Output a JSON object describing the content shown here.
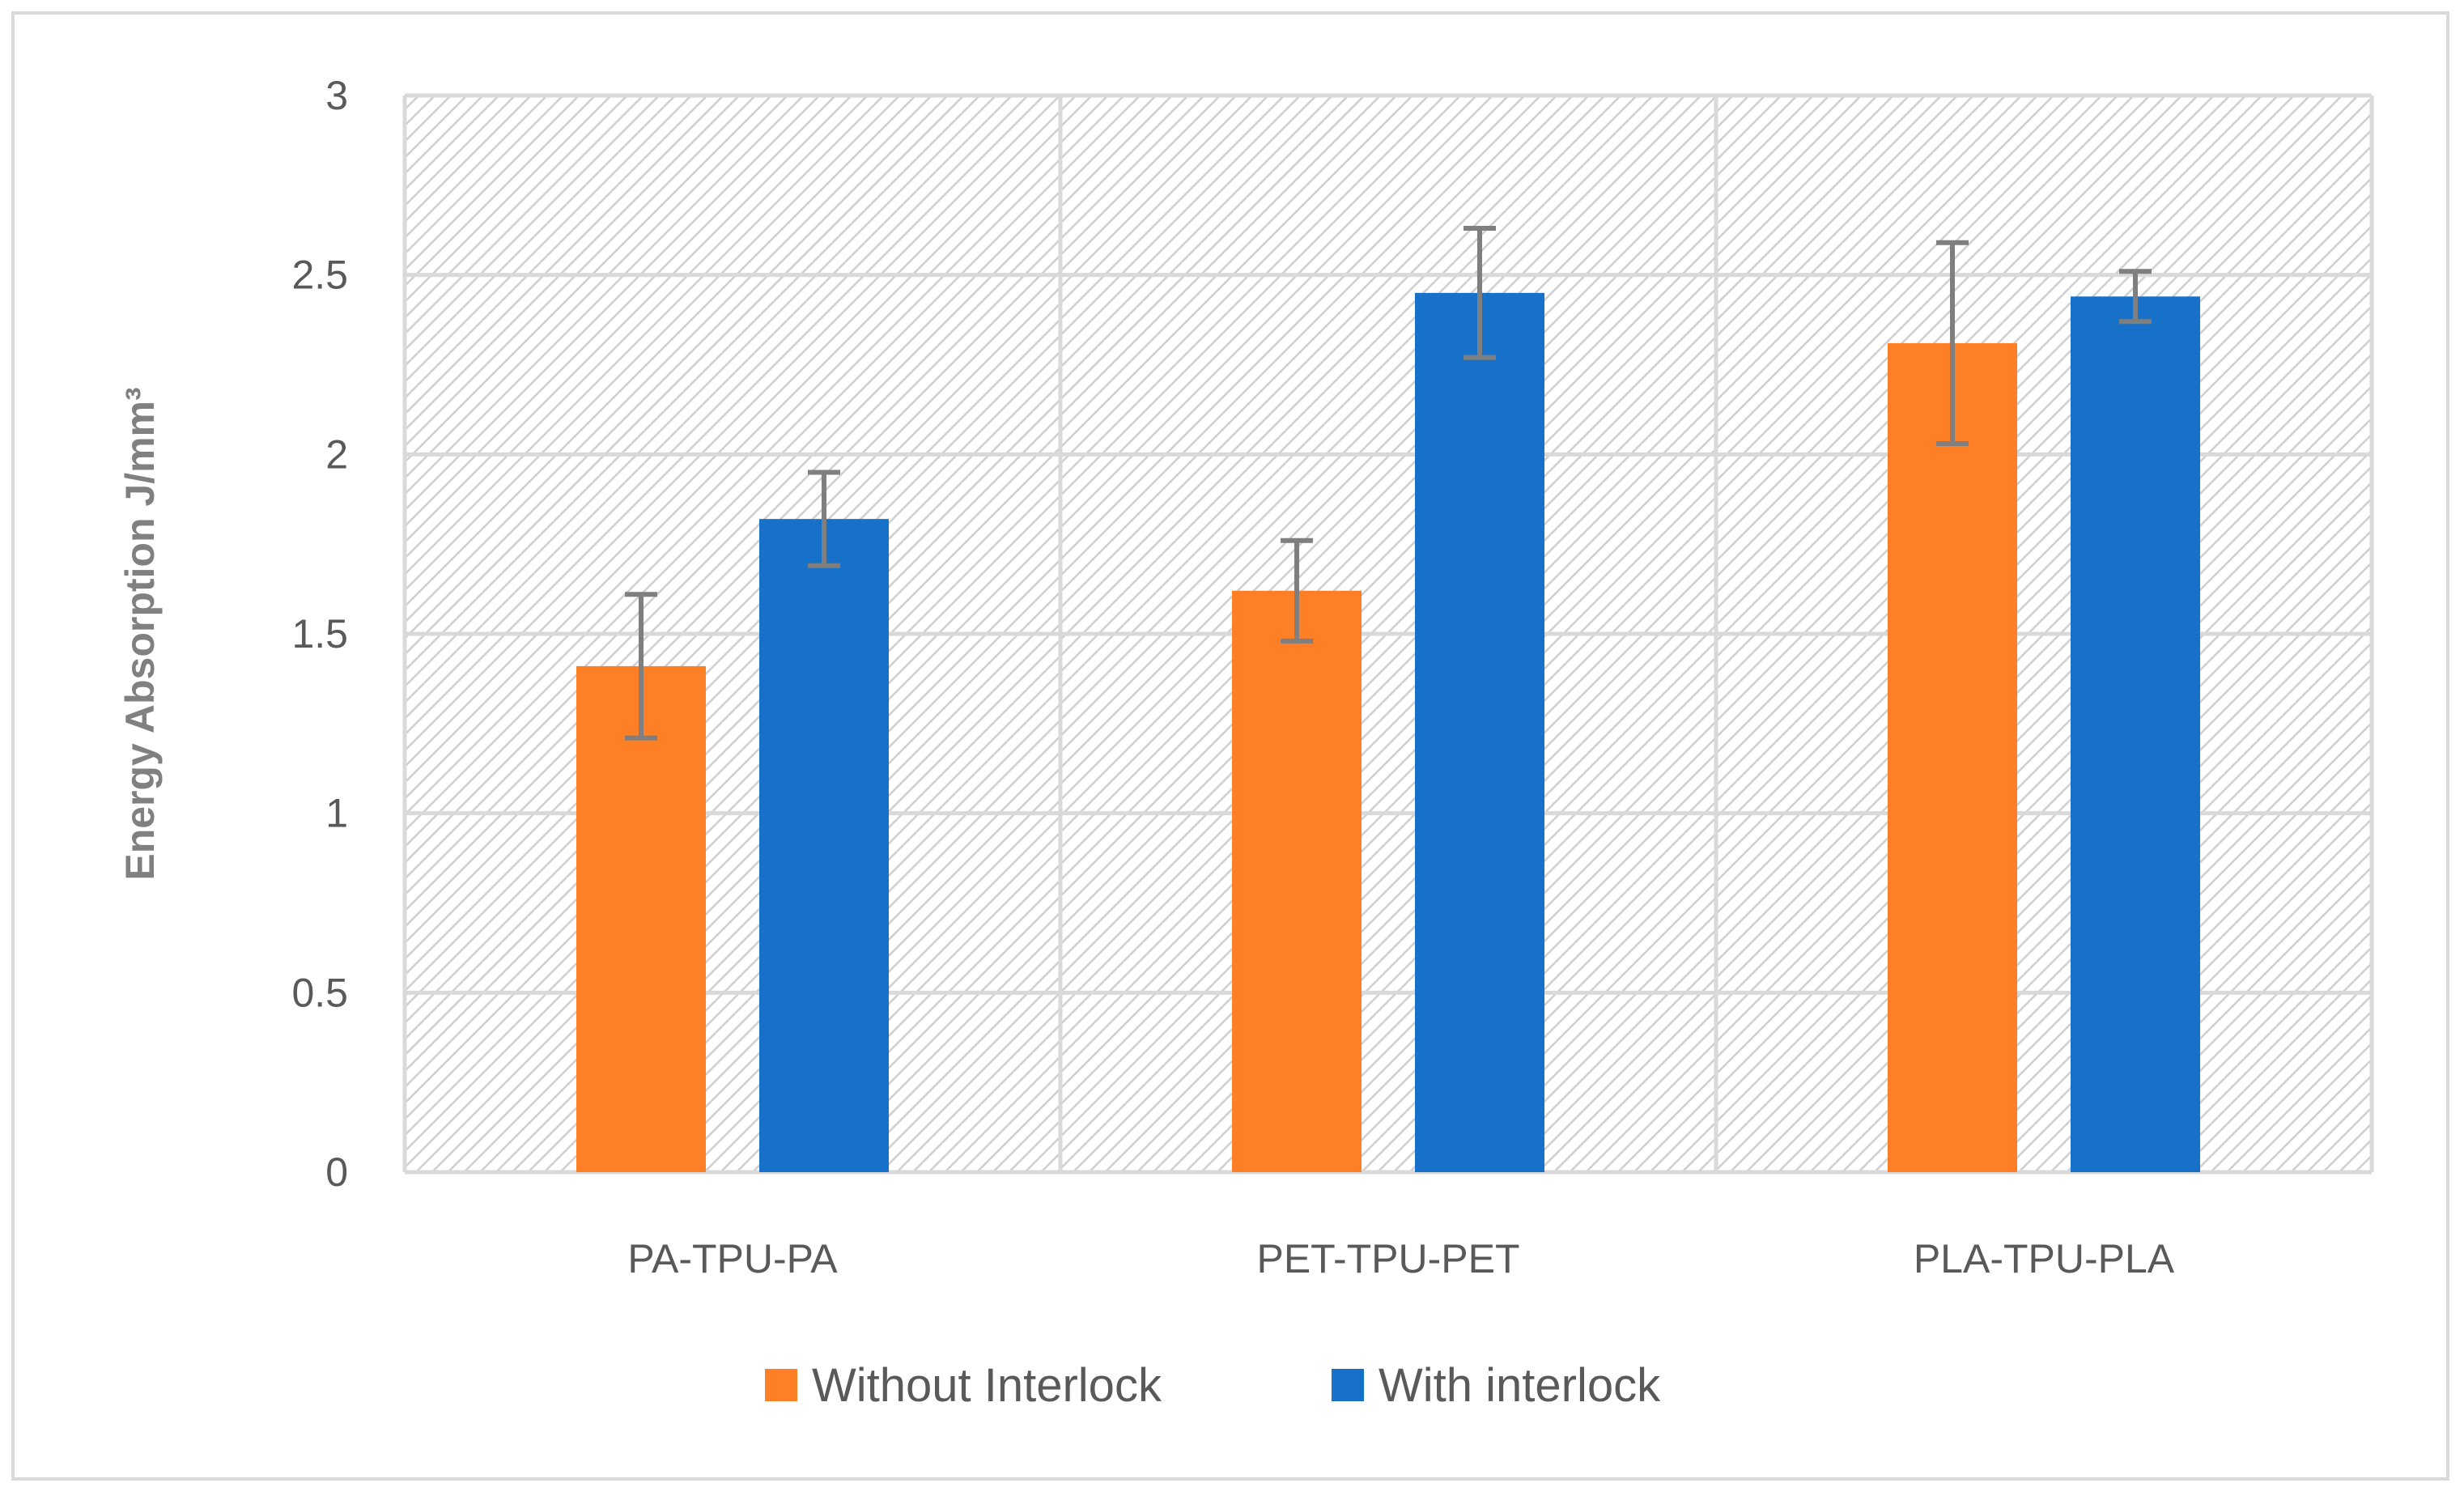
{
  "chart_data": {
    "type": "bar",
    "title": "",
    "xlabel": "",
    "ylabel": "Energy Absorption J/mm³",
    "ylim": [
      0,
      3
    ],
    "yticks": [
      0,
      0.5,
      1,
      1.5,
      2,
      2.5,
      3
    ],
    "ytick_labels": [
      "0",
      "0.5",
      "1",
      "1.5",
      "2",
      "2.5",
      "3"
    ],
    "grid": true,
    "legend_position": "bottom",
    "categories": [
      "PA-TPU-PA",
      "PET-TPU-PET",
      "PLA-TPU-PLA"
    ],
    "series": [
      {
        "name": "Without Interlock",
        "color": "#ff7f27",
        "values": [
          1.41,
          1.62,
          2.31
        ],
        "errors": [
          0.2,
          0.14,
          0.28
        ]
      },
      {
        "name": "With interlock",
        "color": "#1771c9",
        "values": [
          1.82,
          2.45,
          2.44
        ],
        "errors": [
          0.13,
          0.18,
          0.07
        ]
      }
    ],
    "error_bar_color": "#7f7f7f"
  }
}
